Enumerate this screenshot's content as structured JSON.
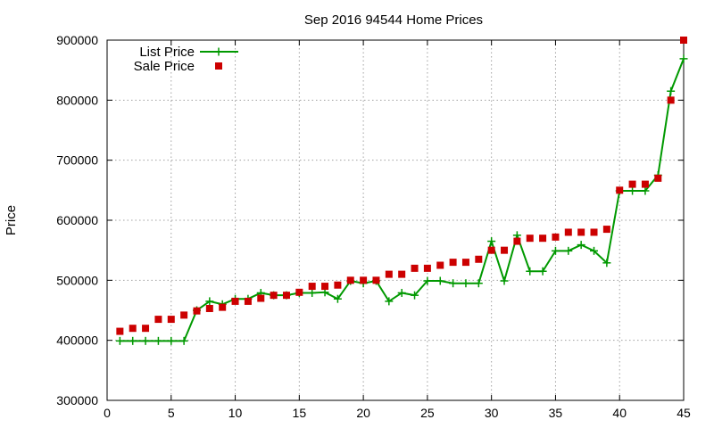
{
  "chart_data": {
    "type": "line",
    "title": "Sep 2016 94544 Home Prices",
    "xlabel": "",
    "ylabel": "Price",
    "xlim": [
      0,
      45
    ],
    "ylim": [
      300000,
      900000
    ],
    "xticks": [
      0,
      5,
      10,
      15,
      20,
      25,
      30,
      35,
      40,
      45
    ],
    "yticks": [
      300000,
      400000,
      500000,
      600000,
      700000,
      800000,
      900000
    ],
    "xtick_labels": [
      "0",
      "5",
      "10",
      "15",
      "20",
      "25",
      "30",
      "35",
      "40",
      "45"
    ],
    "ytick_labels": [
      "300000",
      "400000",
      "500000",
      "600000",
      "700000",
      "800000",
      "900000"
    ],
    "grid": true,
    "legend_position": "top-left",
    "x": [
      1,
      2,
      3,
      4,
      5,
      6,
      7,
      8,
      9,
      10,
      11,
      12,
      13,
      14,
      15,
      16,
      17,
      18,
      19,
      20,
      21,
      22,
      23,
      24,
      25,
      26,
      27,
      28,
      29,
      30,
      31,
      32,
      33,
      34,
      35,
      36,
      37,
      38,
      39,
      40,
      41,
      42,
      43,
      44,
      45
    ],
    "series": [
      {
        "name": "List Price",
        "style": "linespoints",
        "marker": "plus",
        "color": "#009900",
        "values": [
          399000,
          399000,
          399000,
          399000,
          399000,
          399000,
          450000,
          465000,
          460000,
          469000,
          469000,
          479000,
          475000,
          475000,
          479000,
          479000,
          480000,
          469000,
          499000,
          495000,
          499000,
          465000,
          479000,
          475000,
          499000,
          499000,
          495000,
          495000,
          495000,
          565000,
          499000,
          575000,
          515000,
          515000,
          549000,
          549000,
          559000,
          549000,
          529000,
          649000,
          649000,
          649000,
          675000,
          815000,
          869000
        ]
      },
      {
        "name": "Sale Price",
        "style": "points",
        "marker": "square",
        "color": "#cc0000",
        "values": [
          415000,
          420000,
          420000,
          435000,
          435000,
          442000,
          449000,
          453000,
          455000,
          465000,
          465000,
          470000,
          475000,
          475000,
          480000,
          490000,
          490000,
          492000,
          500000,
          500000,
          500000,
          510000,
          510000,
          520000,
          520000,
          525000,
          530000,
          530000,
          535000,
          550000,
          550000,
          565000,
          570000,
          570000,
          572000,
          580000,
          580000,
          580000,
          585000,
          650000,
          660000,
          660000,
          670000,
          800000,
          900000
        ]
      }
    ]
  }
}
